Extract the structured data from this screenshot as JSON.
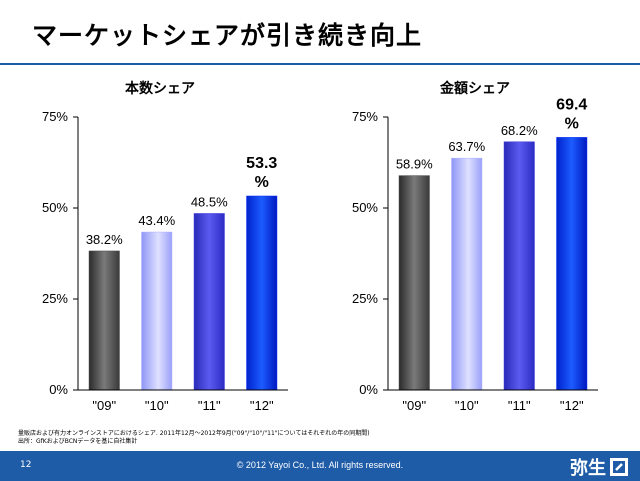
{
  "slide": {
    "title": "マーケットシェアが引き続き向上",
    "notes": [
      "量販店および有力オンラインストアにおけるシェア. 2011年12月～2012年9月(\"09\"/\"10\"/\"11\"についてはそれぞれの年の同期間)",
      "出所：GfKおよびBCNデータを基に自社集計"
    ],
    "page_number": "12",
    "copyright": "© 2012 Yayoi Co., Ltd.  All rights reserved.",
    "logo_text": "弥生"
  },
  "chart_data": [
    {
      "type": "bar",
      "title": "本数シェア",
      "categories": [
        "\"09\"",
        "\"10\"",
        "\"11\"",
        "\"12\""
      ],
      "values": [
        38.2,
        43.4,
        48.5,
        53.3
      ],
      "labels": [
        "38.2%",
        "43.4%",
        "48.5%",
        "53.3 %"
      ],
      "ylim": [
        0,
        75
      ],
      "yticks": [
        "0%",
        "25%",
        "50%",
        "75%"
      ],
      "colors": [
        "#4a4a4a",
        "#aab0ff",
        "#3c3ce0",
        "#0a30ff"
      ]
    },
    {
      "type": "bar",
      "title": "金額シェア",
      "categories": [
        "\"09\"",
        "\"10\"",
        "\"11\"",
        "\"12\""
      ],
      "values": [
        58.9,
        63.7,
        68.2,
        69.4
      ],
      "labels": [
        "58.9%",
        "63.7%",
        "68.2%",
        "69.4 %"
      ],
      "ylim": [
        0,
        75
      ],
      "yticks": [
        "0%",
        "25%",
        "50%",
        "75%"
      ],
      "colors": [
        "#4a4a4a",
        "#aab0ff",
        "#3c3ce0",
        "#0a30ff"
      ]
    }
  ]
}
